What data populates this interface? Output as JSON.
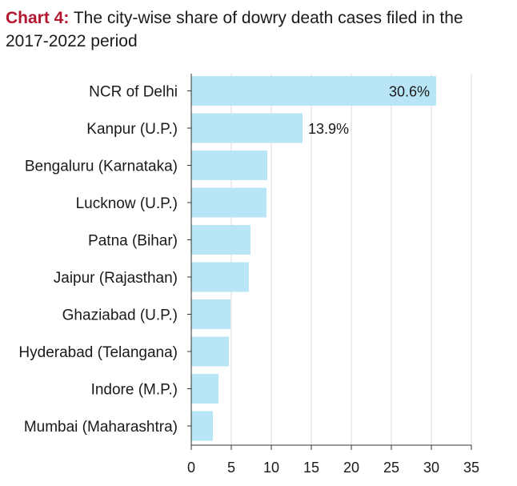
{
  "title": {
    "prefix": "Chart 4:",
    "text": "The city-wise share of dowry death cases filed in the 2017-2022 period"
  },
  "chart_data": {
    "type": "bar",
    "orientation": "horizontal",
    "categories": [
      "NCR of Delhi",
      "Kanpur (U.P.)",
      "Bengaluru (Karnataka)",
      "Lucknow (U.P.)",
      "Patna (Bihar)",
      "Jaipur (Rajasthan)",
      "Ghaziabad (U.P.)",
      "Hyderabad (Telangana)",
      "Indore (M.P.)",
      "Mumbai (Maharashtra)"
    ],
    "values": [
      30.6,
      13.9,
      9.5,
      9.4,
      7.4,
      7.2,
      4.9,
      4.7,
      3.4,
      2.7
    ],
    "data_labels": [
      "30.6%",
      "13.9%",
      null,
      null,
      null,
      null,
      null,
      null,
      null,
      null
    ],
    "xlim": [
      0,
      35
    ],
    "xticks": [
      0,
      5,
      10,
      15,
      20,
      25,
      30,
      35
    ],
    "grid": "vertical",
    "bar_color": "#b8e6f7"
  }
}
